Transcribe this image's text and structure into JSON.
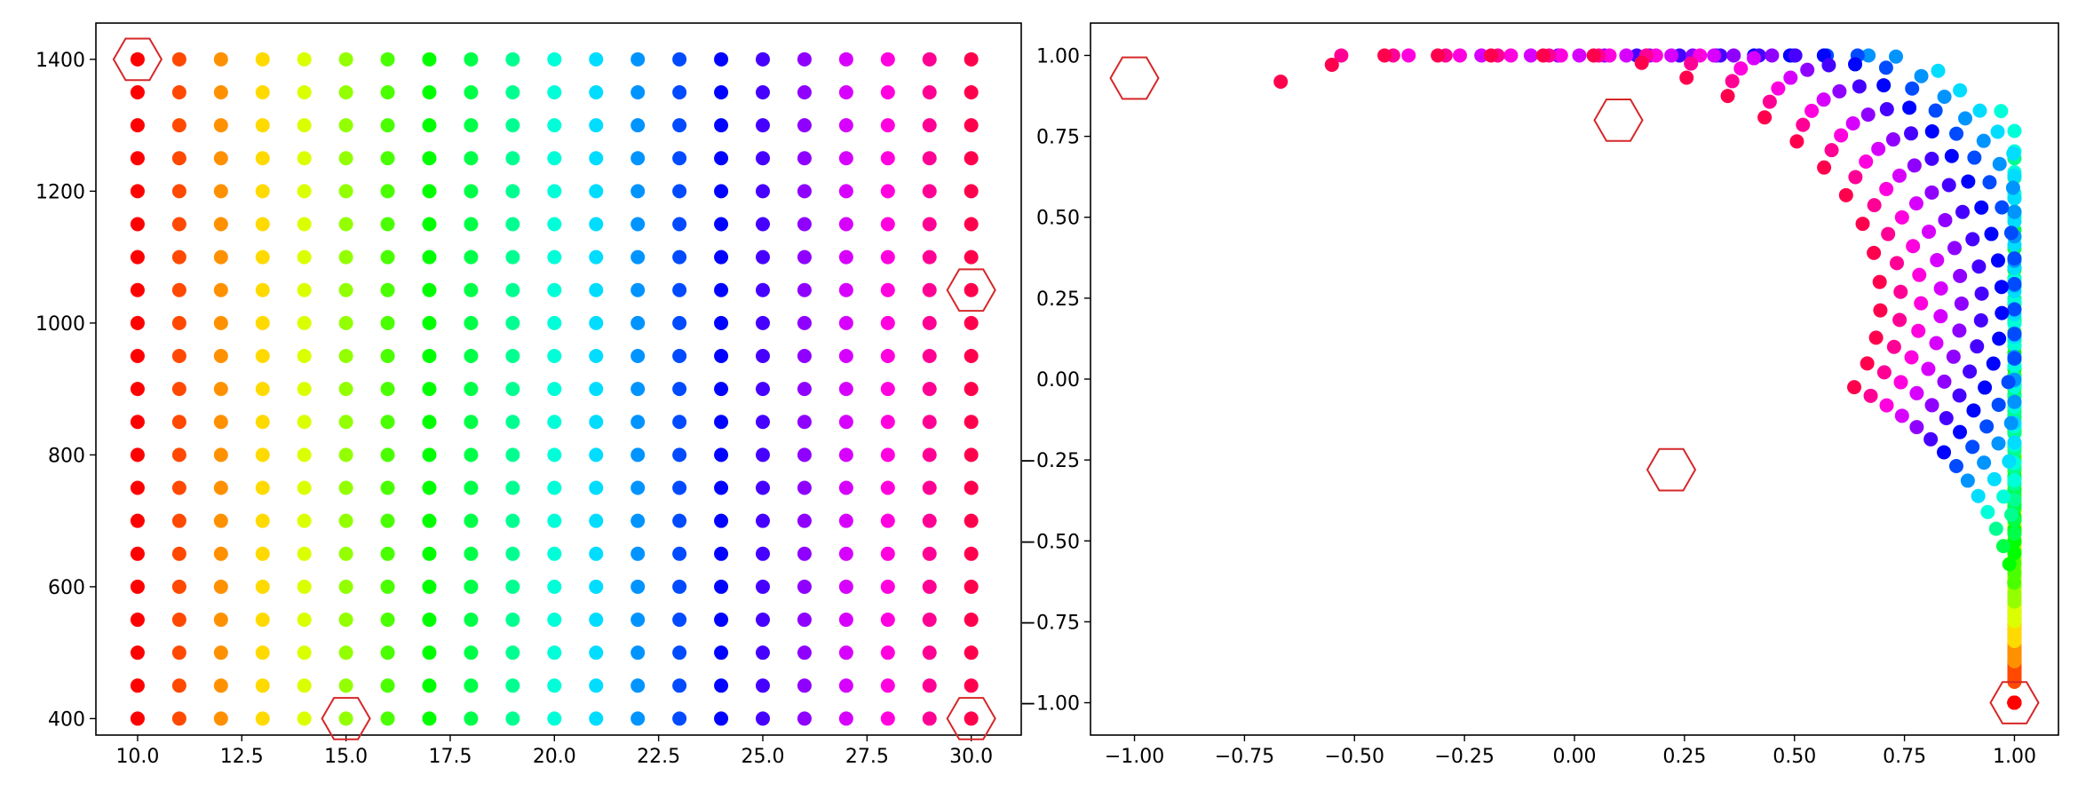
{
  "chart_data": [
    {
      "type": "scatter",
      "description_of_grid": "points at every integer x from 10 to 30 and every y from 400 to 1400 in steps of 50; color = hsv colormap over x",
      "x_values": {
        "start": 10,
        "stop": 30,
        "step": 1
      },
      "y_values": {
        "start": 400,
        "stop": 1400,
        "step": 50
      },
      "colormap": "hsv",
      "xlim": [
        9,
        31.2
      ],
      "ylim": [
        375,
        1455
      ],
      "xticks": [
        10.0,
        12.5,
        15.0,
        17.5,
        20.0,
        22.5,
        25.0,
        27.5,
        30.0
      ],
      "xtick_labels": [
        "10.0",
        "12.5",
        "15.0",
        "17.5",
        "20.0",
        "22.5",
        "25.0",
        "27.5",
        "30.0"
      ],
      "yticks": [
        400,
        600,
        800,
        1000,
        1200,
        1400
      ],
      "ytick_labels": [
        "400",
        "600",
        "800",
        "1000",
        "1200",
        "1400"
      ],
      "highlighted_points": [
        {
          "x": 10,
          "y": 1400
        },
        {
          "x": 30,
          "y": 1050
        },
        {
          "x": 15,
          "y": 400
        },
        {
          "x": 30,
          "y": 400
        }
      ],
      "highlight_color": "#d62728",
      "grid": false
    },
    {
      "type": "scatter",
      "description_of_grid": "same grid mapped to the plane: x' = cos(theta), y' = sin(theta) * r, theta from -pi/2 to ~3pi/4 across x = 10..30, radius shrinks with y",
      "colormap": "hsv",
      "xlim": [
        -1.1,
        1.1
      ],
      "ylim": [
        -1.1,
        1.1
      ],
      "xticks": [
        -1.0,
        -0.75,
        -0.5,
        -0.25,
        0.0,
        0.25,
        0.5,
        0.75,
        1.0
      ],
      "xtick_labels": [
        "−1.00",
        "−0.75",
        "−0.50",
        "−0.25",
        "0.00",
        "0.25",
        "0.50",
        "0.75",
        "1.00"
      ],
      "yticks": [
        -1.0,
        -0.75,
        -0.5,
        -0.25,
        0.0,
        0.25,
        0.5,
        0.75,
        1.0
      ],
      "ytick_labels": [
        "−1.00",
        "−0.75",
        "−0.50",
        "−0.25",
        "0.00",
        "0.25",
        "0.50",
        "0.75",
        "1.00"
      ],
      "highlighted_points": [
        {
          "x": -1.0,
          "y": 0.93
        },
        {
          "x": 0.1,
          "y": 0.8
        },
        {
          "x": 0.22,
          "y": -0.28
        },
        {
          "x": 1.0,
          "y": -1.0
        }
      ],
      "highlight_color": "#d62728",
      "grid": false
    }
  ]
}
